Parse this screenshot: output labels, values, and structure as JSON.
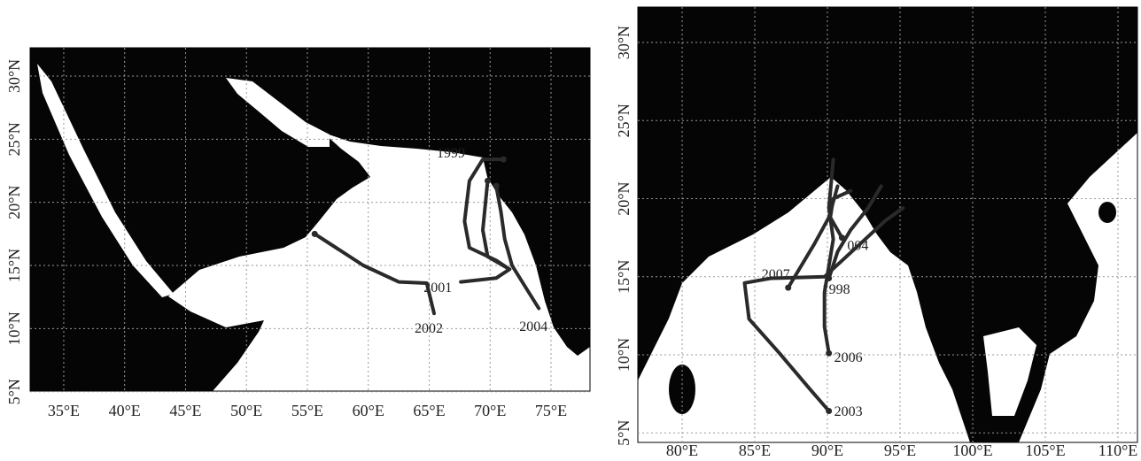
{
  "panels": [
    {
      "xlim": [
        32.24,
        78.2
      ],
      "ylim": [
        5.05,
        32.24
      ],
      "xticks": [
        {
          "value": 35,
          "label": "35°E"
        },
        {
          "value": 40,
          "label": "40°E"
        },
        {
          "value": 45,
          "label": "45°E"
        },
        {
          "value": 50,
          "label": "50°E"
        },
        {
          "value": 55,
          "label": "55°E"
        },
        {
          "value": 60,
          "label": "60°E"
        },
        {
          "value": 65,
          "label": "65°E"
        },
        {
          "value": 70,
          "label": "70°E"
        },
        {
          "value": 75,
          "label": "75°E"
        }
      ],
      "yticks": [
        {
          "value": 5,
          "label": "5°N"
        },
        {
          "value": 10,
          "label": "10°N"
        },
        {
          "value": 15,
          "label": "15°N"
        },
        {
          "value": 20,
          "label": "20°N"
        },
        {
          "value": 25,
          "label": "25°N"
        },
        {
          "value": 30,
          "label": "30°N"
        }
      ],
      "tracks": [
        {
          "label": "1999",
          "lon": [
            71.1,
            69.4,
            68.3,
            67.9,
            68.3,
            70.5,
            71.6
          ],
          "lat": [
            23.4,
            23.4,
            21.7,
            18.5,
            16.4,
            15.4,
            14.7
          ]
        },
        {
          "label": "2001",
          "lon": [
            69.8,
            69.4,
            69.8,
            71.6,
            70.5,
            67.6
          ],
          "lat": [
            21.7,
            17.8,
            15.7,
            14.7,
            14.0,
            13.7
          ]
        },
        {
          "label": "2002",
          "lon": [
            55.6,
            59.6,
            62.5,
            64.8,
            65.4
          ],
          "lat": [
            17.5,
            15.0,
            13.7,
            13.6,
            11.2
          ]
        },
        {
          "label": "2004",
          "lon": [
            70.5,
            70.9,
            71.2,
            71.8,
            72.7,
            74.0
          ],
          "lat": [
            21.3,
            19.2,
            17.1,
            15.0,
            13.6,
            11.6
          ]
        }
      ]
    },
    {
      "xlim": [
        76.95,
        111.34
      ],
      "ylim": [
        4.39,
        32.27
      ],
      "xticks": [
        {
          "value": 80,
          "label": "80°E"
        },
        {
          "value": 85,
          "label": "85°E"
        },
        {
          "value": 90,
          "label": "90°E"
        },
        {
          "value": 95,
          "label": "95°E"
        },
        {
          "value": 100,
          "label": "100°E"
        },
        {
          "value": 105,
          "label": "105°E"
        },
        {
          "value": 110,
          "label": "110°E"
        }
      ],
      "yticks": [
        {
          "value": 5,
          "label": "5°N"
        },
        {
          "value": 10,
          "label": "10°N"
        },
        {
          "value": 15,
          "label": "15°N"
        },
        {
          "value": 20,
          "label": "20°N"
        },
        {
          "value": 25,
          "label": "25°N"
        },
        {
          "value": 30,
          "label": "30°N"
        }
      ],
      "tracks": [
        {
          "label": "2007",
          "lon": [
            87.3,
            88.2,
            89.1,
            90.1,
            90.7
          ],
          "lat": [
            14.3,
            15.7,
            17.1,
            18.8,
            20.8
          ]
        },
        {
          "label": "1998",
          "lon": [
            90.1,
            90.7,
            91.6,
            92.8,
            93.7
          ],
          "lat": [
            14.9,
            16.6,
            18.0,
            19.4,
            20.8
          ]
        },
        {
          "label": "004",
          "lon": [
            91.0,
            90.2,
            90.4,
            91.6
          ],
          "lat": [
            17.5,
            18.8,
            20.0,
            20.5
          ]
        },
        {
          "label": "2006",
          "lon": [
            90.1,
            89.8,
            89.8,
            90.1,
            90.4,
            90.1,
            90.4
          ],
          "lat": [
            10.1,
            11.8,
            14.0,
            15.7,
            17.4,
            19.4,
            22.5
          ]
        },
        {
          "label": "2003",
          "lon": [
            90.1,
            88.8,
            86.7,
            84.6,
            84.3,
            86.1,
            89.8,
            94.0,
            95.2
          ],
          "lat": [
            6.4,
            7.8,
            10.1,
            12.3,
            14.6,
            14.9,
            15.0,
            18.6,
            19.4
          ]
        }
      ]
    }
  ]
}
